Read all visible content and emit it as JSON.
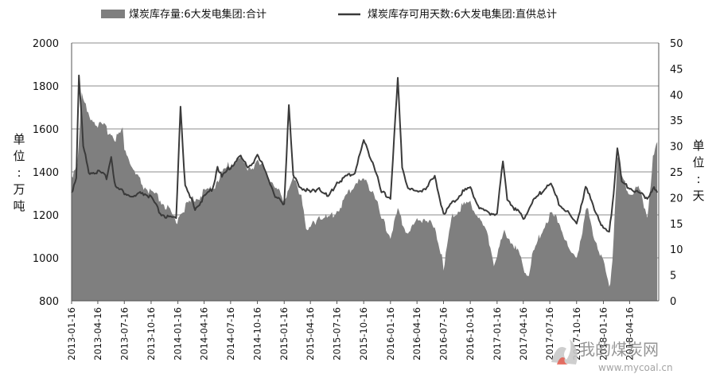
{
  "chart_data": {
    "type": "area",
    "legend": {
      "placement": "top",
      "items": [
        {
          "label": "煤炭库存量:6大发电集团:合计",
          "kind": "area",
          "color": "#7f7f7f"
        },
        {
          "label": "煤炭库存可用天数:6大发电集团:直供总计",
          "kind": "line",
          "color": "#3a3a3a"
        }
      ]
    },
    "y_left": {
      "label": "单位:万吨",
      "min": 800,
      "max": 2000,
      "ticks": [
        800,
        1000,
        1200,
        1400,
        1600,
        1800,
        2000
      ]
    },
    "y_right": {
      "label": "单位:天",
      "min": 0,
      "max": 50,
      "ticks": [
        0,
        5,
        10,
        15,
        20,
        25,
        30,
        35,
        40,
        45,
        50
      ]
    },
    "grid": "horizontal",
    "x_ticks": [
      "2013-01-16",
      "2013-04-16",
      "2013-07-16",
      "2013-10-16",
      "2014-01-16",
      "2014-04-16",
      "2014-07-16",
      "2014-10-16",
      "2015-01-16",
      "2015-04-16",
      "2015-07-16",
      "2015-10-16",
      "2016-01-16",
      "2016-04-16",
      "2016-07-16",
      "2016-10-16",
      "2017-01-16",
      "2017-04-16",
      "2017-07-16",
      "2017-10-16",
      "2018-01-16",
      "2018-04-16"
    ],
    "series": [
      {
        "name": "煤炭库存量:6大发电集团:合计",
        "axis": "left",
        "points": [
          [
            "2013-01-16",
            1380
          ],
          [
            "2013-02-05",
            1450
          ],
          [
            "2013-02-20",
            1760
          ],
          [
            "2013-03-10",
            1680
          ],
          [
            "2013-04-16",
            1620
          ],
          [
            "2013-05-16",
            1600
          ],
          [
            "2013-06-16",
            1560
          ],
          [
            "2013-07-10",
            1590
          ],
          [
            "2013-07-16",
            1520
          ],
          [
            "2013-08-16",
            1400
          ],
          [
            "2013-09-16",
            1340
          ],
          [
            "2013-10-16",
            1300
          ],
          [
            "2013-11-16",
            1270
          ],
          [
            "2013-12-16",
            1220
          ],
          [
            "2014-01-10",
            1160
          ],
          [
            "2014-01-25",
            1220
          ],
          [
            "2014-02-16",
            1240
          ],
          [
            "2014-03-16",
            1280
          ],
          [
            "2014-04-16",
            1300
          ],
          [
            "2014-05-16",
            1330
          ],
          [
            "2014-06-16",
            1390
          ],
          [
            "2014-07-16",
            1440
          ],
          [
            "2014-08-16",
            1460
          ],
          [
            "2014-09-16",
            1420
          ],
          [
            "2014-10-16",
            1440
          ],
          [
            "2014-11-16",
            1400
          ],
          [
            "2014-12-16",
            1320
          ],
          [
            "2015-01-16",
            1280
          ],
          [
            "2015-02-16",
            1360
          ],
          [
            "2015-03-16",
            1300
          ],
          [
            "2015-04-05",
            1110
          ],
          [
            "2015-04-16",
            1140
          ],
          [
            "2015-05-16",
            1200
          ],
          [
            "2015-06-16",
            1180
          ],
          [
            "2015-07-16",
            1220
          ],
          [
            "2015-08-16",
            1280
          ],
          [
            "2015-09-16",
            1350
          ],
          [
            "2015-10-16",
            1360
          ],
          [
            "2015-11-16",
            1320
          ],
          [
            "2015-12-16",
            1180
          ],
          [
            "2016-01-16",
            1100
          ],
          [
            "2016-02-10",
            1220
          ],
          [
            "2016-02-25",
            1160
          ],
          [
            "2016-03-16",
            1120
          ],
          [
            "2016-04-16",
            1170
          ],
          [
            "2016-05-16",
            1190
          ],
          [
            "2016-06-16",
            1130
          ],
          [
            "2016-07-10",
            1020
          ],
          [
            "2016-07-16",
            960
          ],
          [
            "2016-08-16",
            1200
          ],
          [
            "2016-09-16",
            1240
          ],
          [
            "2016-10-16",
            1260
          ],
          [
            "2016-11-16",
            1180
          ],
          [
            "2016-12-16",
            1100
          ],
          [
            "2017-01-05",
            980
          ],
          [
            "2017-01-16",
            1000
          ],
          [
            "2017-02-10",
            1130
          ],
          [
            "2017-03-16",
            1060
          ],
          [
            "2017-04-16",
            960
          ],
          [
            "2017-05-05",
            920
          ],
          [
            "2017-05-16",
            1000
          ],
          [
            "2017-06-16",
            1120
          ],
          [
            "2017-07-16",
            1200
          ],
          [
            "2017-08-16",
            1180
          ],
          [
            "2017-09-16",
            1040
          ],
          [
            "2017-10-16",
            1000
          ],
          [
            "2017-11-05",
            1130
          ],
          [
            "2017-11-20",
            1230
          ],
          [
            "2017-12-16",
            1100
          ],
          [
            "2018-01-16",
            980
          ],
          [
            "2018-02-05",
            850
          ],
          [
            "2018-02-16",
            1000
          ],
          [
            "2018-03-05",
            1470
          ],
          [
            "2018-03-20",
            1380
          ],
          [
            "2018-04-16",
            1300
          ],
          [
            "2018-05-16",
            1330
          ],
          [
            "2018-06-16",
            1200
          ],
          [
            "2018-07-05",
            1460
          ],
          [
            "2018-07-20",
            1540
          ]
        ]
      },
      {
        "name": "煤炭库存可用天数:6大发电集团:直供总计",
        "axis": "right",
        "points": [
          [
            "2013-01-16",
            21
          ],
          [
            "2013-02-01",
            24
          ],
          [
            "2013-02-10",
            44
          ],
          [
            "2013-02-25",
            30
          ],
          [
            "2013-03-16",
            25
          ],
          [
            "2013-04-16",
            25
          ],
          [
            "2013-05-16",
            24
          ],
          [
            "2013-06-01",
            28
          ],
          [
            "2013-06-16",
            22
          ],
          [
            "2013-07-16",
            21
          ],
          [
            "2013-08-16",
            20
          ],
          [
            "2013-09-16",
            21
          ],
          [
            "2013-10-16",
            20
          ],
          [
            "2013-11-16",
            17
          ],
          [
            "2013-12-16",
            16
          ],
          [
            "2014-01-10",
            16
          ],
          [
            "2014-01-25",
            38
          ],
          [
            "2014-02-10",
            22
          ],
          [
            "2014-03-16",
            18
          ],
          [
            "2014-04-16",
            20
          ],
          [
            "2014-05-16",
            22
          ],
          [
            "2014-06-01",
            26
          ],
          [
            "2014-06-16",
            24
          ],
          [
            "2014-07-16",
            26
          ],
          [
            "2014-08-16",
            28
          ],
          [
            "2014-09-16",
            26
          ],
          [
            "2014-10-16",
            28
          ],
          [
            "2014-11-16",
            25
          ],
          [
            "2014-12-16",
            20
          ],
          [
            "2015-01-16",
            19
          ],
          [
            "2015-02-01",
            38
          ],
          [
            "2015-02-16",
            24
          ],
          [
            "2015-03-16",
            22
          ],
          [
            "2015-04-16",
            21
          ],
          [
            "2015-05-16",
            22
          ],
          [
            "2015-06-16",
            20
          ],
          [
            "2015-07-16",
            23
          ],
          [
            "2015-08-16",
            24
          ],
          [
            "2015-09-16",
            25
          ],
          [
            "2015-10-16",
            31
          ],
          [
            "2015-11-16",
            27
          ],
          [
            "2015-12-16",
            21
          ],
          [
            "2016-01-16",
            20
          ],
          [
            "2016-02-10",
            43
          ],
          [
            "2016-02-25",
            26
          ],
          [
            "2016-03-16",
            22
          ],
          [
            "2016-04-16",
            21
          ],
          [
            "2016-05-16",
            22
          ],
          [
            "2016-06-16",
            24
          ],
          [
            "2016-07-16",
            17
          ],
          [
            "2016-08-16",
            19
          ],
          [
            "2016-09-16",
            21
          ],
          [
            "2016-10-16",
            22
          ],
          [
            "2016-11-16",
            18
          ],
          [
            "2016-12-16",
            17
          ],
          [
            "2017-01-16",
            17
          ],
          [
            "2017-02-05",
            27
          ],
          [
            "2017-02-20",
            20
          ],
          [
            "2017-03-16",
            18
          ],
          [
            "2017-04-16",
            16
          ],
          [
            "2017-05-16",
            19
          ],
          [
            "2017-06-16",
            21
          ],
          [
            "2017-07-16",
            23
          ],
          [
            "2017-08-16",
            19
          ],
          [
            "2017-09-16",
            17
          ],
          [
            "2017-10-16",
            15
          ],
          [
            "2017-11-16",
            22
          ],
          [
            "2017-12-16",
            18
          ],
          [
            "2018-01-16",
            14
          ],
          [
            "2018-02-05",
            13
          ],
          [
            "2018-02-20",
            21
          ],
          [
            "2018-03-05",
            30
          ],
          [
            "2018-03-20",
            23
          ],
          [
            "2018-04-16",
            22
          ],
          [
            "2018-05-16",
            21
          ],
          [
            "2018-06-16",
            20
          ],
          [
            "2018-07-05",
            22
          ],
          [
            "2018-07-20",
            21
          ]
        ]
      }
    ]
  },
  "watermark": {
    "text": "我的煤炭网",
    "url": "www.mycoal.cn"
  }
}
